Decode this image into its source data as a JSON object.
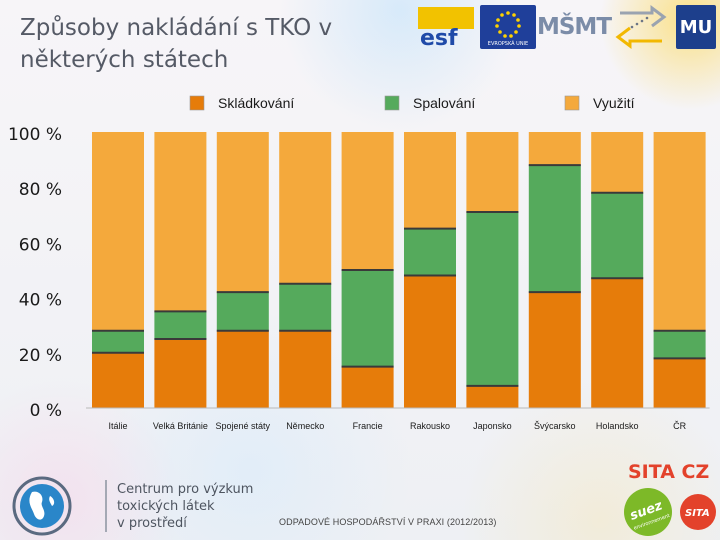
{
  "slide": {
    "title_line1": "Způsoby nakládání s TKO v",
    "title_line2": "některých státech",
    "footer": "ODPADOVÉ HOSPODÁŘSTVÍ V PRAXI (2012/2013)",
    "header_logos": {
      "esf": "esf",
      "eu_caption": "EVROPSKÁ UNIE",
      "msmt": "MŠMT",
      "university": "MU"
    },
    "centre_logo": {
      "line1": "Centrum pro výzkum",
      "line2": "toxických látek",
      "line3": "v prostředí"
    },
    "sita_logo": {
      "name": "SITA CZ",
      "suez": "suez",
      "suez_sub": "environnement",
      "badge": "SITA"
    }
  },
  "colors": {
    "landfill": "#e67c0a",
    "incineration": "#55aa5c",
    "recovery": "#f4a93c",
    "divider": "#3a3a3a",
    "axis_text": "#1a1a1a"
  },
  "chart_data": {
    "type": "bar",
    "stacked": true,
    "categories": [
      "Itálie",
      "Velká Británie",
      "Spojené státy",
      "Německo",
      "Francie",
      "Rakousko",
      "Japonsko",
      "Švýcarsko",
      "Holandsko",
      "ČR"
    ],
    "series": [
      {
        "name": "Skládkování",
        "color": "#e67c0a",
        "values": [
          20,
          25,
          28,
          28,
          15,
          48,
          8,
          42,
          47,
          18
        ]
      },
      {
        "name": "Spalování",
        "color": "#55aa5c",
        "values": [
          8,
          10,
          14,
          17,
          35,
          17,
          63,
          46,
          31,
          10
        ]
      },
      {
        "name": "Využití",
        "color": "#f4a93c",
        "values": [
          72,
          65,
          58,
          55,
          50,
          35,
          29,
          12,
          22,
          72
        ]
      }
    ],
    "yticks": [
      "0 %",
      "20 %",
      "40 %",
      "60 %",
      "80 %",
      "100 %"
    ],
    "ylim": [
      0,
      100
    ],
    "legend_position": "top",
    "grid": false
  }
}
